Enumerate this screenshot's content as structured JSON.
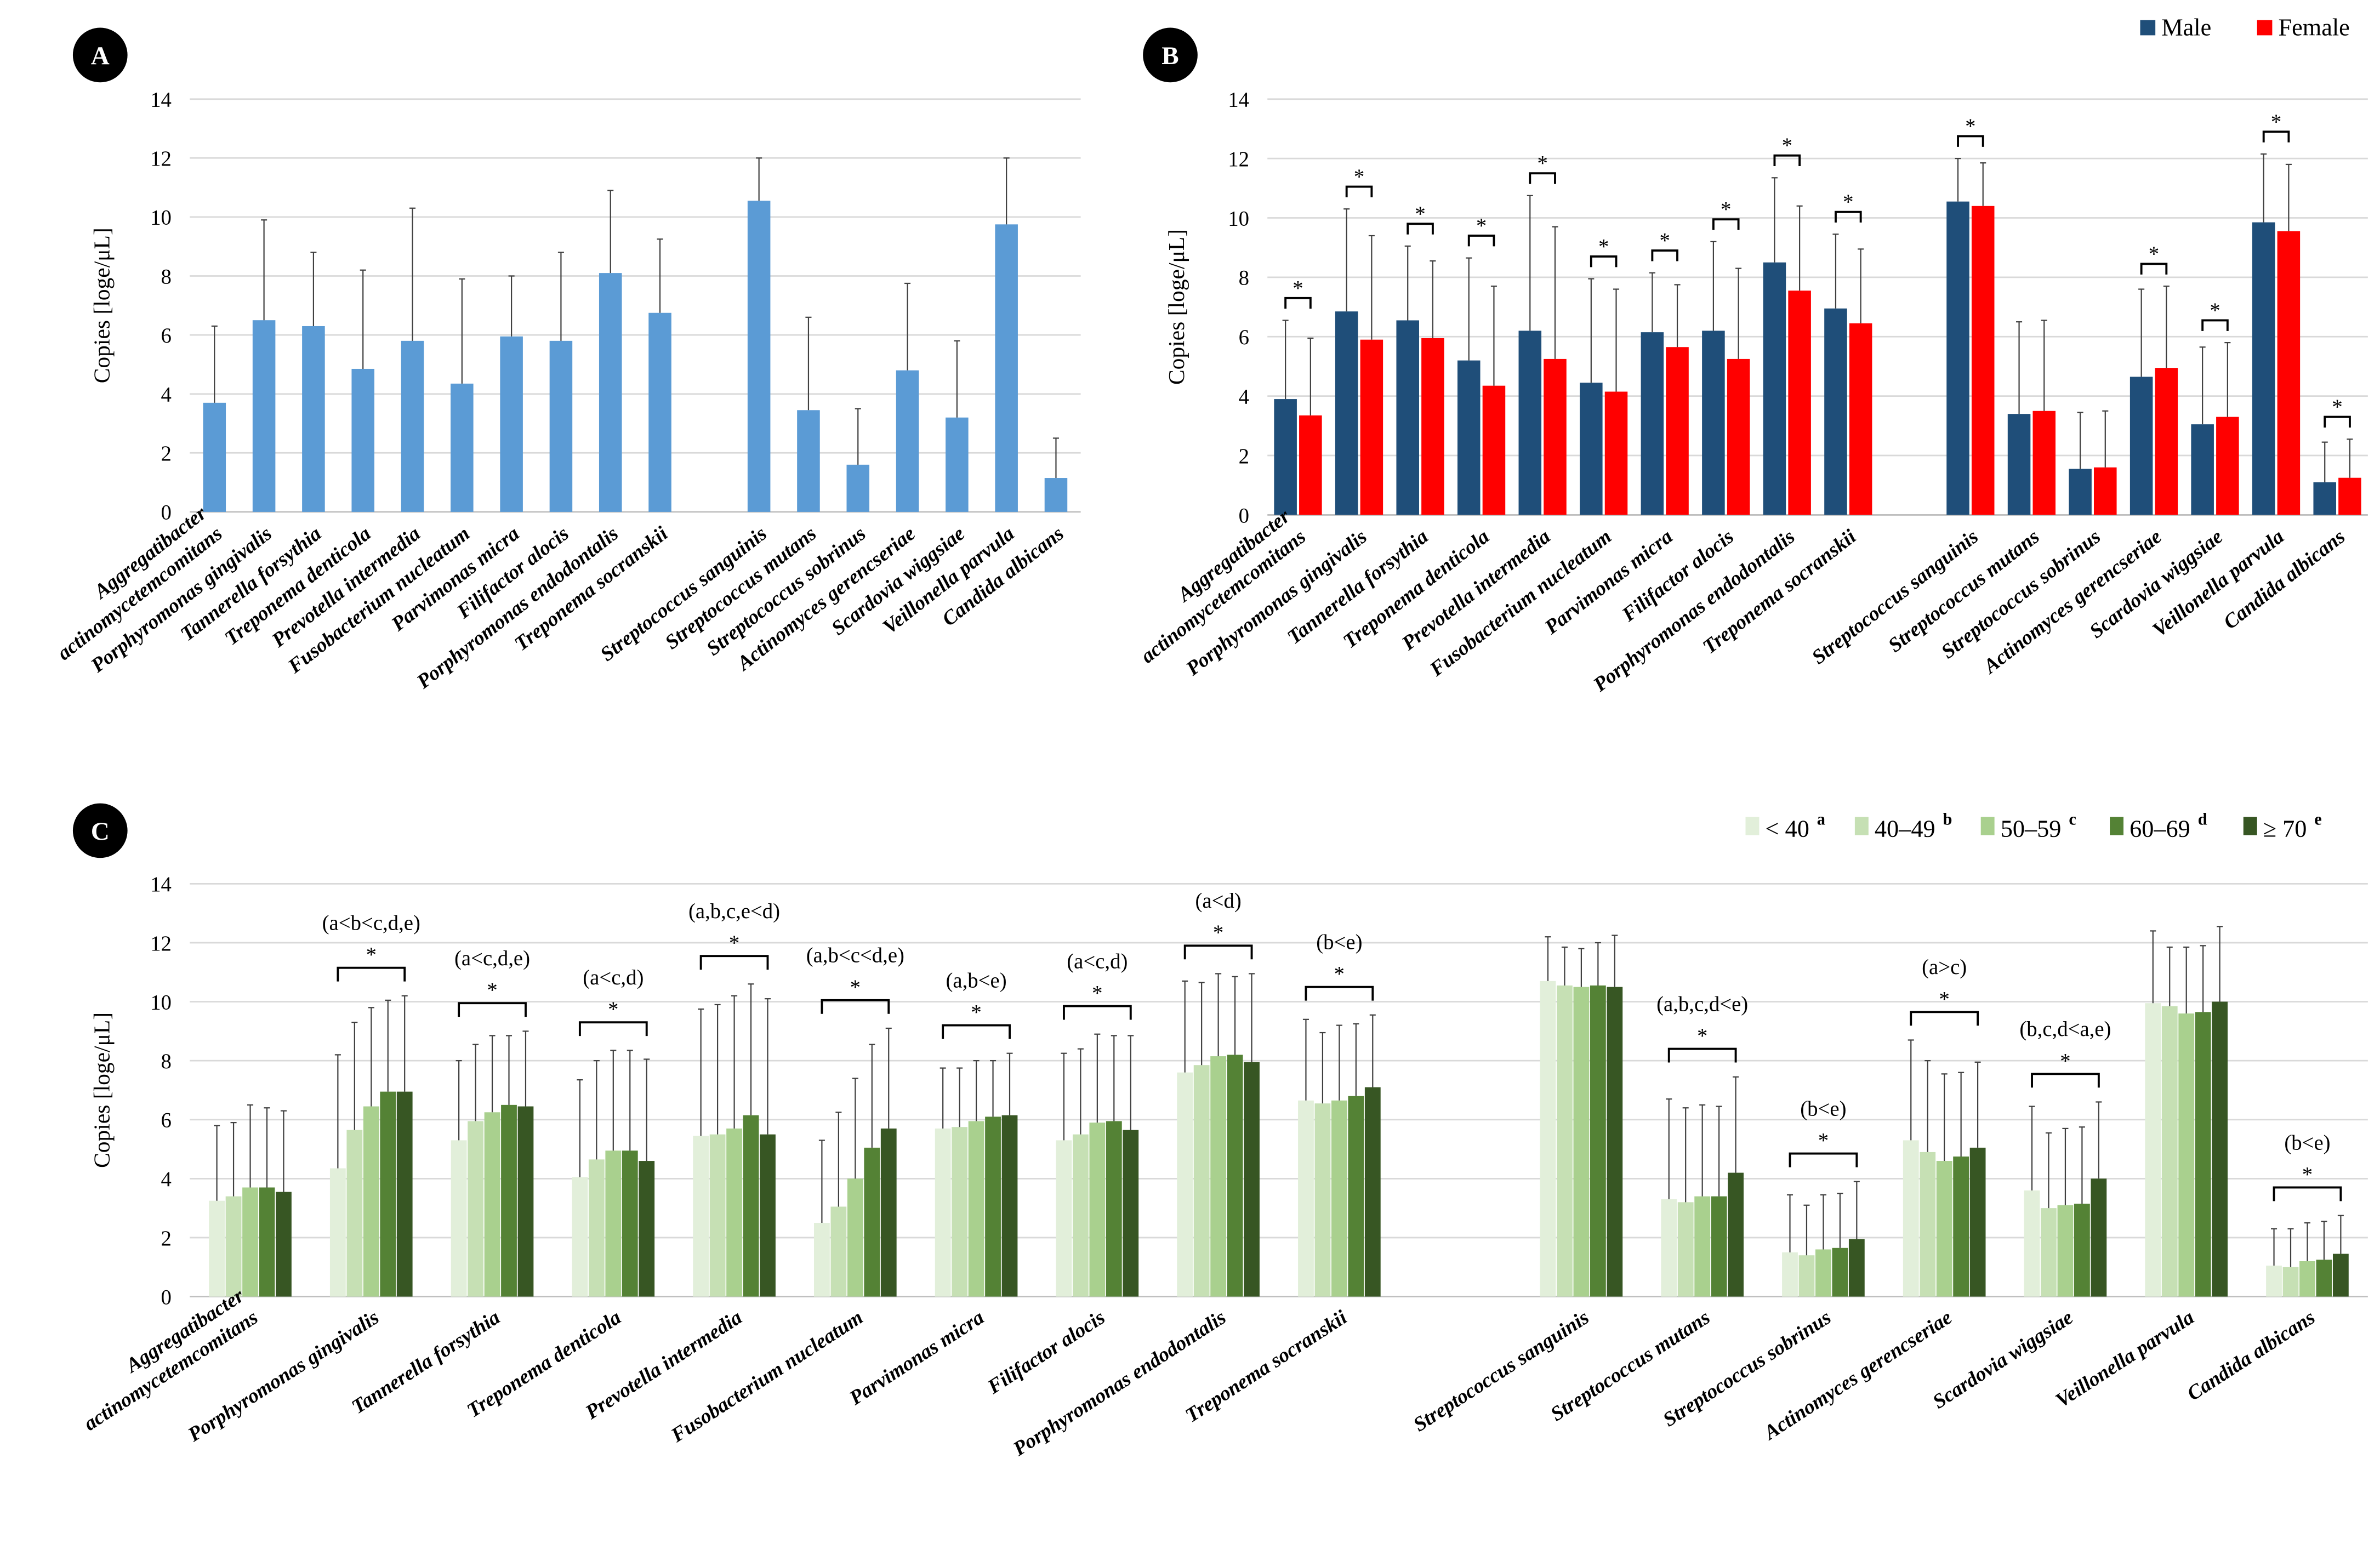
{
  "chart_data": [
    {
      "panel": "A",
      "type": "bar",
      "ylabel": "Copies [loge/μL]",
      "ylim": [
        0,
        14
      ],
      "yticks": [
        0,
        2,
        4,
        6,
        8,
        10,
        12,
        14
      ],
      "grid": true,
      "categories": [
        "Aggregatibacter actinomycetemcomitans",
        "Porphyromonas gingivalis",
        "Tannerella forsythia",
        "Treponema denticola",
        "Prevotella intermedia",
        "Fusobacterium nucleatum",
        "Parvimonas micra",
        "Filifactor alocis",
        "Porphyromonas endodontalis",
        "Treponema socranskii",
        "",
        "Streptococcus sanguinis",
        "Streptococcus mutans",
        "Streptococcus sobrinus",
        "Actinomyces gerencseriae",
        "Scardovia wiggsiae",
        "Veillonella parvula",
        "Candida albicans"
      ],
      "series": [
        {
          "name": "All",
          "color": "#5b9bd5",
          "values": [
            3.7,
            6.5,
            6.3,
            4.85,
            5.8,
            4.35,
            5.95,
            5.8,
            8.1,
            6.75,
            null,
            10.55,
            3.45,
            1.6,
            4.8,
            3.2,
            9.75,
            1.15
          ],
          "error_upper": [
            6.3,
            9.9,
            8.8,
            8.2,
            10.3,
            7.9,
            8.0,
            8.8,
            10.9,
            9.25,
            null,
            12.0,
            6.6,
            3.5,
            7.75,
            5.8,
            12.0,
            2.5
          ]
        }
      ]
    },
    {
      "panel": "B",
      "type": "bar",
      "ylabel": "Copies [loge/μL]",
      "ylim": [
        0,
        14
      ],
      "yticks": [
        0,
        2,
        4,
        6,
        8,
        10,
        12,
        14
      ],
      "grid": true,
      "legend": "top-right",
      "categories": [
        "Aggregatibacter actinomycetemcomitans",
        "Porphyromonas gingivalis",
        "Tannerella forsythia",
        "Treponema denticola",
        "Prevotella intermedia",
        "Fusobacterium nucleatum",
        "Parvimonas micra",
        "Filifactor alocis",
        "Porphyromonas endodontalis",
        "Treponema socranskii",
        "",
        "Streptococcus sanguinis",
        "Streptococcus mutans",
        "Streptococcus sobrinus",
        "Actinomyces gerencseriae",
        "Scardovia wiggsiae",
        "Veillonella parvula",
        "Candida albicans"
      ],
      "series": [
        {
          "name": "Male",
          "color": "#1f4e79",
          "values": [
            3.9,
            6.85,
            6.55,
            5.2,
            6.2,
            4.45,
            6.15,
            6.2,
            8.5,
            6.95,
            null,
            10.55,
            3.4,
            1.55,
            4.65,
            3.05,
            9.85,
            1.1
          ],
          "error_upper": [
            6.55,
            10.3,
            9.05,
            8.65,
            10.75,
            7.95,
            8.15,
            9.2,
            11.35,
            9.45,
            null,
            12.0,
            6.5,
            3.45,
            7.6,
            5.65,
            12.15,
            2.45
          ]
        },
        {
          "name": "Female",
          "color": "#ff0000",
          "values": [
            3.35,
            5.9,
            5.95,
            4.35,
            5.25,
            4.15,
            5.65,
            5.25,
            7.55,
            6.45,
            null,
            10.4,
            3.5,
            1.6,
            4.95,
            3.3,
            9.55,
            1.25
          ],
          "error_upper": [
            5.95,
            9.4,
            8.55,
            7.7,
            9.7,
            7.6,
            7.75,
            8.3,
            10.4,
            8.95,
            null,
            11.85,
            6.55,
            3.5,
            7.7,
            5.8,
            11.8,
            2.55
          ]
        }
      ],
      "annotations": [
        {
          "category": 0,
          "text": "*"
        },
        {
          "category": 1,
          "text": "*"
        },
        {
          "category": 2,
          "text": "*"
        },
        {
          "category": 3,
          "text": "*"
        },
        {
          "category": 4,
          "text": "*"
        },
        {
          "category": 5,
          "text": "*"
        },
        {
          "category": 6,
          "text": "*"
        },
        {
          "category": 7,
          "text": "*"
        },
        {
          "category": 8,
          "text": "*"
        },
        {
          "category": 9,
          "text": "*"
        },
        {
          "category": 11,
          "text": "*"
        },
        {
          "category": 14,
          "text": "*"
        },
        {
          "category": 15,
          "text": "*"
        },
        {
          "category": 16,
          "text": "*"
        },
        {
          "category": 17,
          "text": "*"
        }
      ]
    },
    {
      "panel": "C",
      "type": "bar",
      "ylabel": "Copies [loge/μL]",
      "ylim": [
        0,
        14
      ],
      "yticks": [
        0,
        2,
        4,
        6,
        8,
        10,
        12,
        14
      ],
      "grid": true,
      "legend": "top-right",
      "categories": [
        "Aggregatibacter actinomycetemcomitans",
        "Porphyromonas gingivalis",
        "Tannerella forsythia",
        "Treponema denticola",
        "Prevotella intermedia",
        "Fusobacterium nucleatum",
        "Parvimonas micra",
        "Filifactor alocis",
        "Porphyromonas endodontalis",
        "Treponema socranskii",
        "",
        "Streptococcus sanguinis",
        "Streptococcus mutans",
        "Streptococcus sobrinus",
        "Actinomyces gerencseriae",
        "Scardovia wiggsiae",
        "Veillonella parvula",
        "Candida albicans"
      ],
      "series": [
        {
          "name": "< 40",
          "sup": "a",
          "color": "#e2efda",
          "values": [
            3.25,
            4.35,
            5.3,
            4.05,
            5.45,
            2.5,
            5.7,
            5.3,
            7.6,
            6.65,
            null,
            10.7,
            3.3,
            1.5,
            5.3,
            3.6,
            9.95,
            1.05
          ],
          "error_upper": [
            5.8,
            8.2,
            8.0,
            7.35,
            9.75,
            5.3,
            7.75,
            8.25,
            10.7,
            9.4,
            null,
            12.2,
            6.7,
            3.45,
            8.7,
            6.45,
            12.4,
            2.3
          ]
        },
        {
          "name": "40–49",
          "sup": "b",
          "color": "#c6e0b4",
          "values": [
            3.4,
            5.65,
            5.95,
            4.65,
            5.5,
            3.05,
            5.75,
            5.5,
            7.85,
            6.55,
            null,
            10.55,
            3.2,
            1.4,
            4.9,
            3.0,
            9.85,
            1.0
          ],
          "error_upper": [
            5.9,
            9.3,
            8.55,
            8.0,
            9.9,
            6.25,
            7.75,
            8.4,
            10.65,
            8.95,
            null,
            11.85,
            6.4,
            3.1,
            8.0,
            5.55,
            11.85,
            2.3
          ]
        },
        {
          "name": "50–59",
          "sup": "c",
          "color": "#a9d08e",
          "values": [
            3.7,
            6.45,
            6.25,
            4.95,
            5.7,
            4.0,
            5.95,
            5.9,
            8.15,
            6.65,
            null,
            10.5,
            3.4,
            1.6,
            4.6,
            3.1,
            9.6,
            1.2
          ],
          "error_upper": [
            6.5,
            9.8,
            8.85,
            8.35,
            10.2,
            7.4,
            8.0,
            8.9,
            10.95,
            9.2,
            null,
            11.8,
            6.5,
            3.45,
            7.55,
            5.7,
            11.85,
            2.5
          ]
        },
        {
          "name": "60–69",
          "sup": "d",
          "color": "#548235",
          "values": [
            3.7,
            6.95,
            6.5,
            4.95,
            6.15,
            5.05,
            6.1,
            5.95,
            8.2,
            6.8,
            null,
            10.55,
            3.4,
            1.65,
            4.75,
            3.15,
            9.65,
            1.25
          ],
          "error_upper": [
            6.4,
            10.05,
            8.85,
            8.35,
            10.6,
            8.55,
            8.0,
            8.85,
            10.85,
            9.25,
            null,
            12.0,
            6.45,
            3.5,
            7.6,
            5.75,
            11.9,
            2.55
          ]
        },
        {
          "name": "≥ 70",
          "sup": "e",
          "color": "#375623",
          "values": [
            3.55,
            6.95,
            6.45,
            4.6,
            5.5,
            5.7,
            6.15,
            5.65,
            7.95,
            7.1,
            null,
            10.5,
            4.2,
            1.95,
            5.05,
            4.0,
            10.0,
            1.45
          ],
          "error_upper": [
            6.3,
            10.2,
            9.0,
            8.05,
            10.1,
            9.1,
            8.25,
            8.85,
            10.95,
            9.55,
            null,
            12.25,
            7.45,
            3.9,
            7.95,
            6.6,
            12.55,
            2.75
          ]
        }
      ],
      "annotations": [
        {
          "category": 1,
          "text": "(a<b<c,d,e)",
          "star": "*"
        },
        {
          "category": 2,
          "text": "(a<c,d,e)",
          "star": "*"
        },
        {
          "category": 3,
          "text": "(a<c,d)",
          "star": "*"
        },
        {
          "category": 4,
          "text": "(a,b,c,e<d)",
          "star": "*"
        },
        {
          "category": 5,
          "text": "(a,b<c<d,e)",
          "star": "*"
        },
        {
          "category": 6,
          "text": "(a,b<e)",
          "star": "*"
        },
        {
          "category": 7,
          "text": "(a<c,d)",
          "star": "*"
        },
        {
          "category": 8,
          "text": "(a<d)",
          "star": "*"
        },
        {
          "category": 9,
          "text": "(b<e)",
          "star": "*"
        },
        {
          "category": 12,
          "text": "(a,b,c,d<e)",
          "star": "*"
        },
        {
          "category": 13,
          "text": "(b<e)",
          "star": "*"
        },
        {
          "category": 14,
          "text": "(a>c)",
          "star": "*"
        },
        {
          "category": 15,
          "text": "(b,c,d<a,e)",
          "star": "*"
        },
        {
          "category": 17,
          "text": "(b<e)",
          "star": "*"
        }
      ]
    }
  ]
}
